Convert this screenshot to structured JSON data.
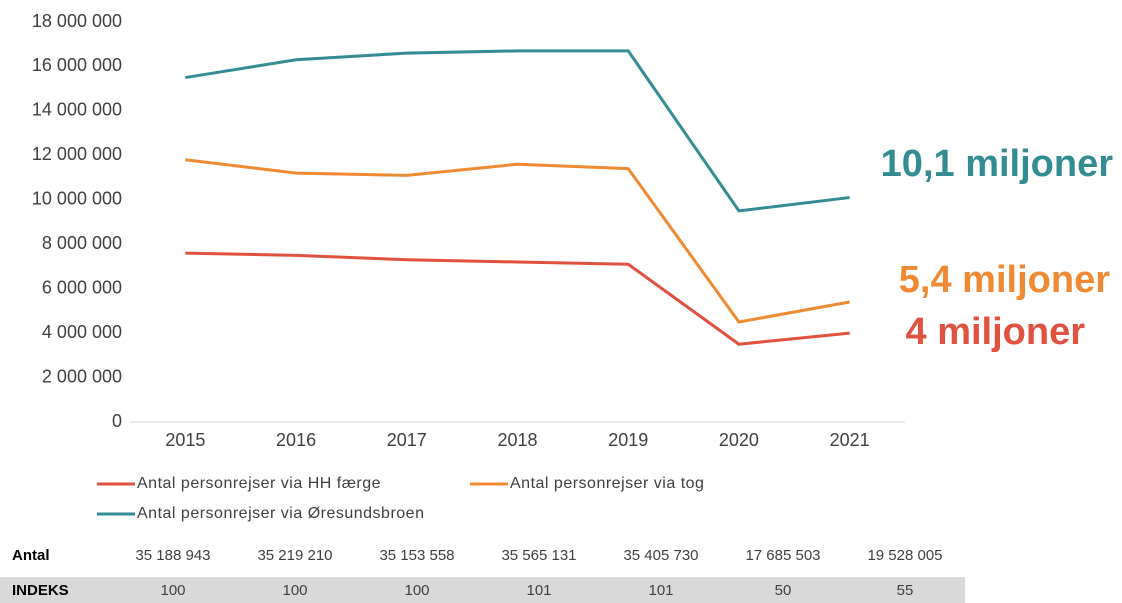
{
  "chart_data": {
    "type": "line",
    "categories": [
      "2015",
      "2016",
      "2017",
      "2018",
      "2019",
      "2020",
      "2021"
    ],
    "series": [
      {
        "name": "Antal personrejser via HH færge",
        "color": "#e0513f",
        "values": [
          7600000,
          7500000,
          7300000,
          7200000,
          7100000,
          3500000,
          4000000
        ]
      },
      {
        "name": "Antal personrejser via tog",
        "color": "#f08a32",
        "values": [
          11800000,
          11200000,
          11100000,
          11600000,
          11400000,
          4500000,
          5400000
        ]
      },
      {
        "name": "Antal personrejser via Øresundsbroen",
        "color": "#338c94",
        "values": [
          15500000,
          16300000,
          16600000,
          16700000,
          16700000,
          9500000,
          10100000
        ]
      }
    ],
    "ylim": [
      0,
      18000000
    ],
    "yticks": [
      0,
      {
        "value": 2000000,
        "label": "2 000 000"
      },
      {
        "value": 4000000,
        "label": "4 000 000"
      },
      {
        "value": 6000000,
        "label": "6 000 000"
      },
      {
        "value": 8000000,
        "label": "8 000 000"
      },
      {
        "value": 10000000,
        "label": "10 000 000"
      },
      {
        "value": 12000000,
        "label": "12 000 000"
      },
      {
        "value": 14000000,
        "label": "14 000 000"
      },
      {
        "value": 16000000,
        "label": "16 000 000"
      },
      {
        "value": 18000000,
        "label": "18 000 000"
      }
    ],
    "grid": false,
    "annotations": [
      {
        "text": "4 miljoner",
        "color": "#e0513f"
      },
      {
        "text": "5,4 miljoner",
        "color": "#f08a32"
      },
      {
        "text": "10,1 miljoner",
        "color": "#338c94"
      }
    ]
  },
  "table": {
    "rows": [
      [
        "Antal",
        "35 188 943",
        "35 219 210",
        "35 153 558",
        "35 565 131",
        "35 405 730",
        "17 685 503",
        "19 528 005"
      ],
      [
        "INDEKS",
        "100",
        "100",
        "100",
        "101",
        "101",
        "50",
        "55"
      ]
    ]
  }
}
